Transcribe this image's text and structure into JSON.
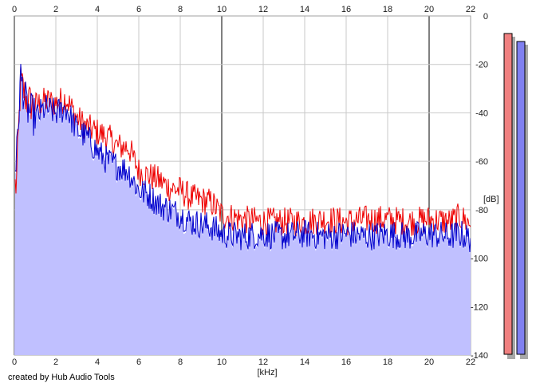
{
  "chart_data": {
    "type": "line",
    "xlabel": "[kHz]",
    "ylabel": "[dB]",
    "xlim": [
      0,
      22
    ],
    "ylim": [
      -140,
      0
    ],
    "x_ticks": [
      0,
      2,
      4,
      6,
      8,
      10,
      12,
      14,
      16,
      18,
      20,
      22
    ],
    "y_ticks": [
      0,
      -20,
      -40,
      -60,
      -80,
      -100,
      -120,
      -140
    ],
    "grid": true,
    "filled_area_color": "#c0c0ff",
    "series": [
      {
        "color": "#ee0000",
        "x": [
          0.1,
          0.3,
          0.6,
          1.0,
          1.5,
          2.0,
          2.5,
          3.0,
          3.5,
          4.0,
          4.5,
          5.0,
          5.5,
          6.0,
          6.5,
          7.0,
          7.5,
          8.0,
          8.5,
          9.0,
          9.5,
          10.0,
          11,
          12,
          13,
          14,
          15,
          16,
          17,
          18,
          19,
          20,
          21,
          21.5,
          22
        ],
        "y": [
          -70,
          -27,
          -35,
          -37,
          -35,
          -36,
          -34,
          -42,
          -46,
          -48,
          -50,
          -54,
          -54,
          -64,
          -66,
          -68,
          -71,
          -72,
          -75,
          -76,
          -77,
          -82,
          -84,
          -85,
          -85,
          -85,
          -84,
          -85,
          -84,
          -84,
          -85,
          -84,
          -85,
          -83,
          -86
        ]
      },
      {
        "color": "#0000cc",
        "x": [
          0.1,
          0.3,
          0.6,
          1.0,
          1.5,
          2.0,
          2.5,
          3.0,
          3.5,
          4.0,
          4.5,
          5.0,
          5.5,
          6.0,
          6.5,
          7.0,
          7.5,
          8.0,
          8.5,
          9.0,
          9.5,
          10.0,
          11,
          12,
          13,
          14,
          15,
          16,
          17,
          18,
          19,
          20,
          21,
          21.5,
          22
        ],
        "y": [
          -60,
          -25,
          -38,
          -42,
          -38,
          -40,
          -38,
          -47,
          -50,
          -56,
          -60,
          -62,
          -64,
          -72,
          -74,
          -78,
          -80,
          -82,
          -85,
          -86,
          -87,
          -90,
          -91,
          -90,
          -91,
          -90,
          -91,
          -90,
          -91,
          -90,
          -91,
          -90,
          -91,
          -90,
          -92
        ]
      }
    ]
  },
  "meters": {
    "left_color": "#f08080",
    "right_color": "#8080f0"
  },
  "credit": "created by Hub Audio Tools"
}
